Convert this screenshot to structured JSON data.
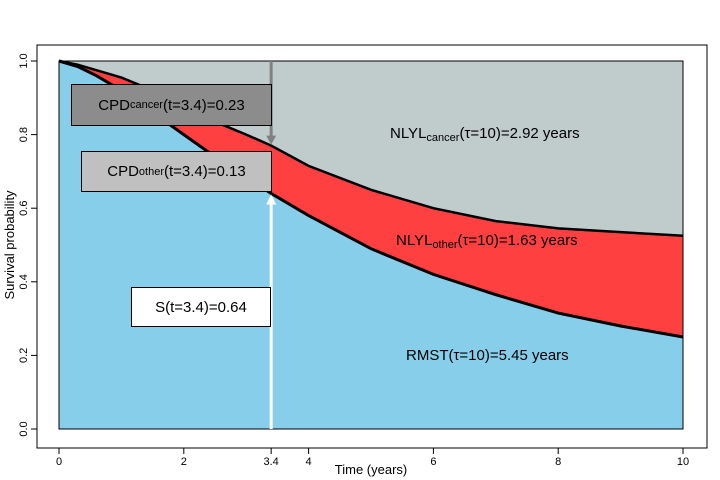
{
  "chart_data": {
    "type": "area",
    "xlabel": "Time (years)",
    "ylabel": "Survival probability",
    "xlim": [
      0,
      10
    ],
    "ylim": [
      0,
      1
    ],
    "x_ticks": [
      "0",
      "2",
      "3.4",
      "4",
      "6",
      "8",
      "10"
    ],
    "y_ticks": [
      "0.0",
      "0.2",
      "0.4",
      "0.6",
      "0.8",
      "1.0"
    ],
    "x": [
      0,
      0.3,
      0.6,
      1,
      1.5,
      2,
      2.5,
      3,
      3.4,
      4,
      5,
      6,
      7,
      8,
      9,
      10
    ],
    "series": [
      {
        "name": "RMST",
        "color": "#87CEEB",
        "values": [
          1.0,
          0.985,
          0.96,
          0.92,
          0.86,
          0.8,
          0.74,
          0.685,
          0.64,
          0.58,
          0.49,
          0.42,
          0.365,
          0.315,
          0.28,
          0.25
        ]
      },
      {
        "name": "NLYL other",
        "color": "#FF4040",
        "values": [
          1.0,
          0.99,
          0.975,
          0.955,
          0.92,
          0.88,
          0.835,
          0.8,
          0.77,
          0.715,
          0.65,
          0.6,
          0.565,
          0.545,
          0.535,
          0.525
        ]
      },
      {
        "name": "NLYL cancer",
        "color": "#C0CBCB",
        "values": [
          1.0,
          1.0,
          1.0,
          1.0,
          1.0,
          1.0,
          1.0,
          1.0,
          1.0,
          1.0,
          1.0,
          1.0,
          1.0,
          1.0,
          1.0,
          1.0
        ]
      }
    ],
    "marker_x": 3.4,
    "annotations": {
      "cpd_cancer": {
        "prefix": "CPD",
        "sub": "cancer",
        "suffix": "(t=3.4)=0.23"
      },
      "cpd_other": {
        "prefix": "CPD",
        "sub": "other",
        "suffix": "(t=3.4)=0.13"
      },
      "survival": {
        "text": "S(t=3.4)=0.64"
      },
      "nlyl_cancer": {
        "prefix": "NLYL",
        "sub": "cancer",
        "suffix": "(τ=10)=2.92 years"
      },
      "nlyl_other": {
        "prefix": "NLYL",
        "sub": "other",
        "suffix": "(τ=10)=1.63 years"
      },
      "rmst": {
        "text": "RMST(τ=10)=5.45 years"
      }
    }
  }
}
